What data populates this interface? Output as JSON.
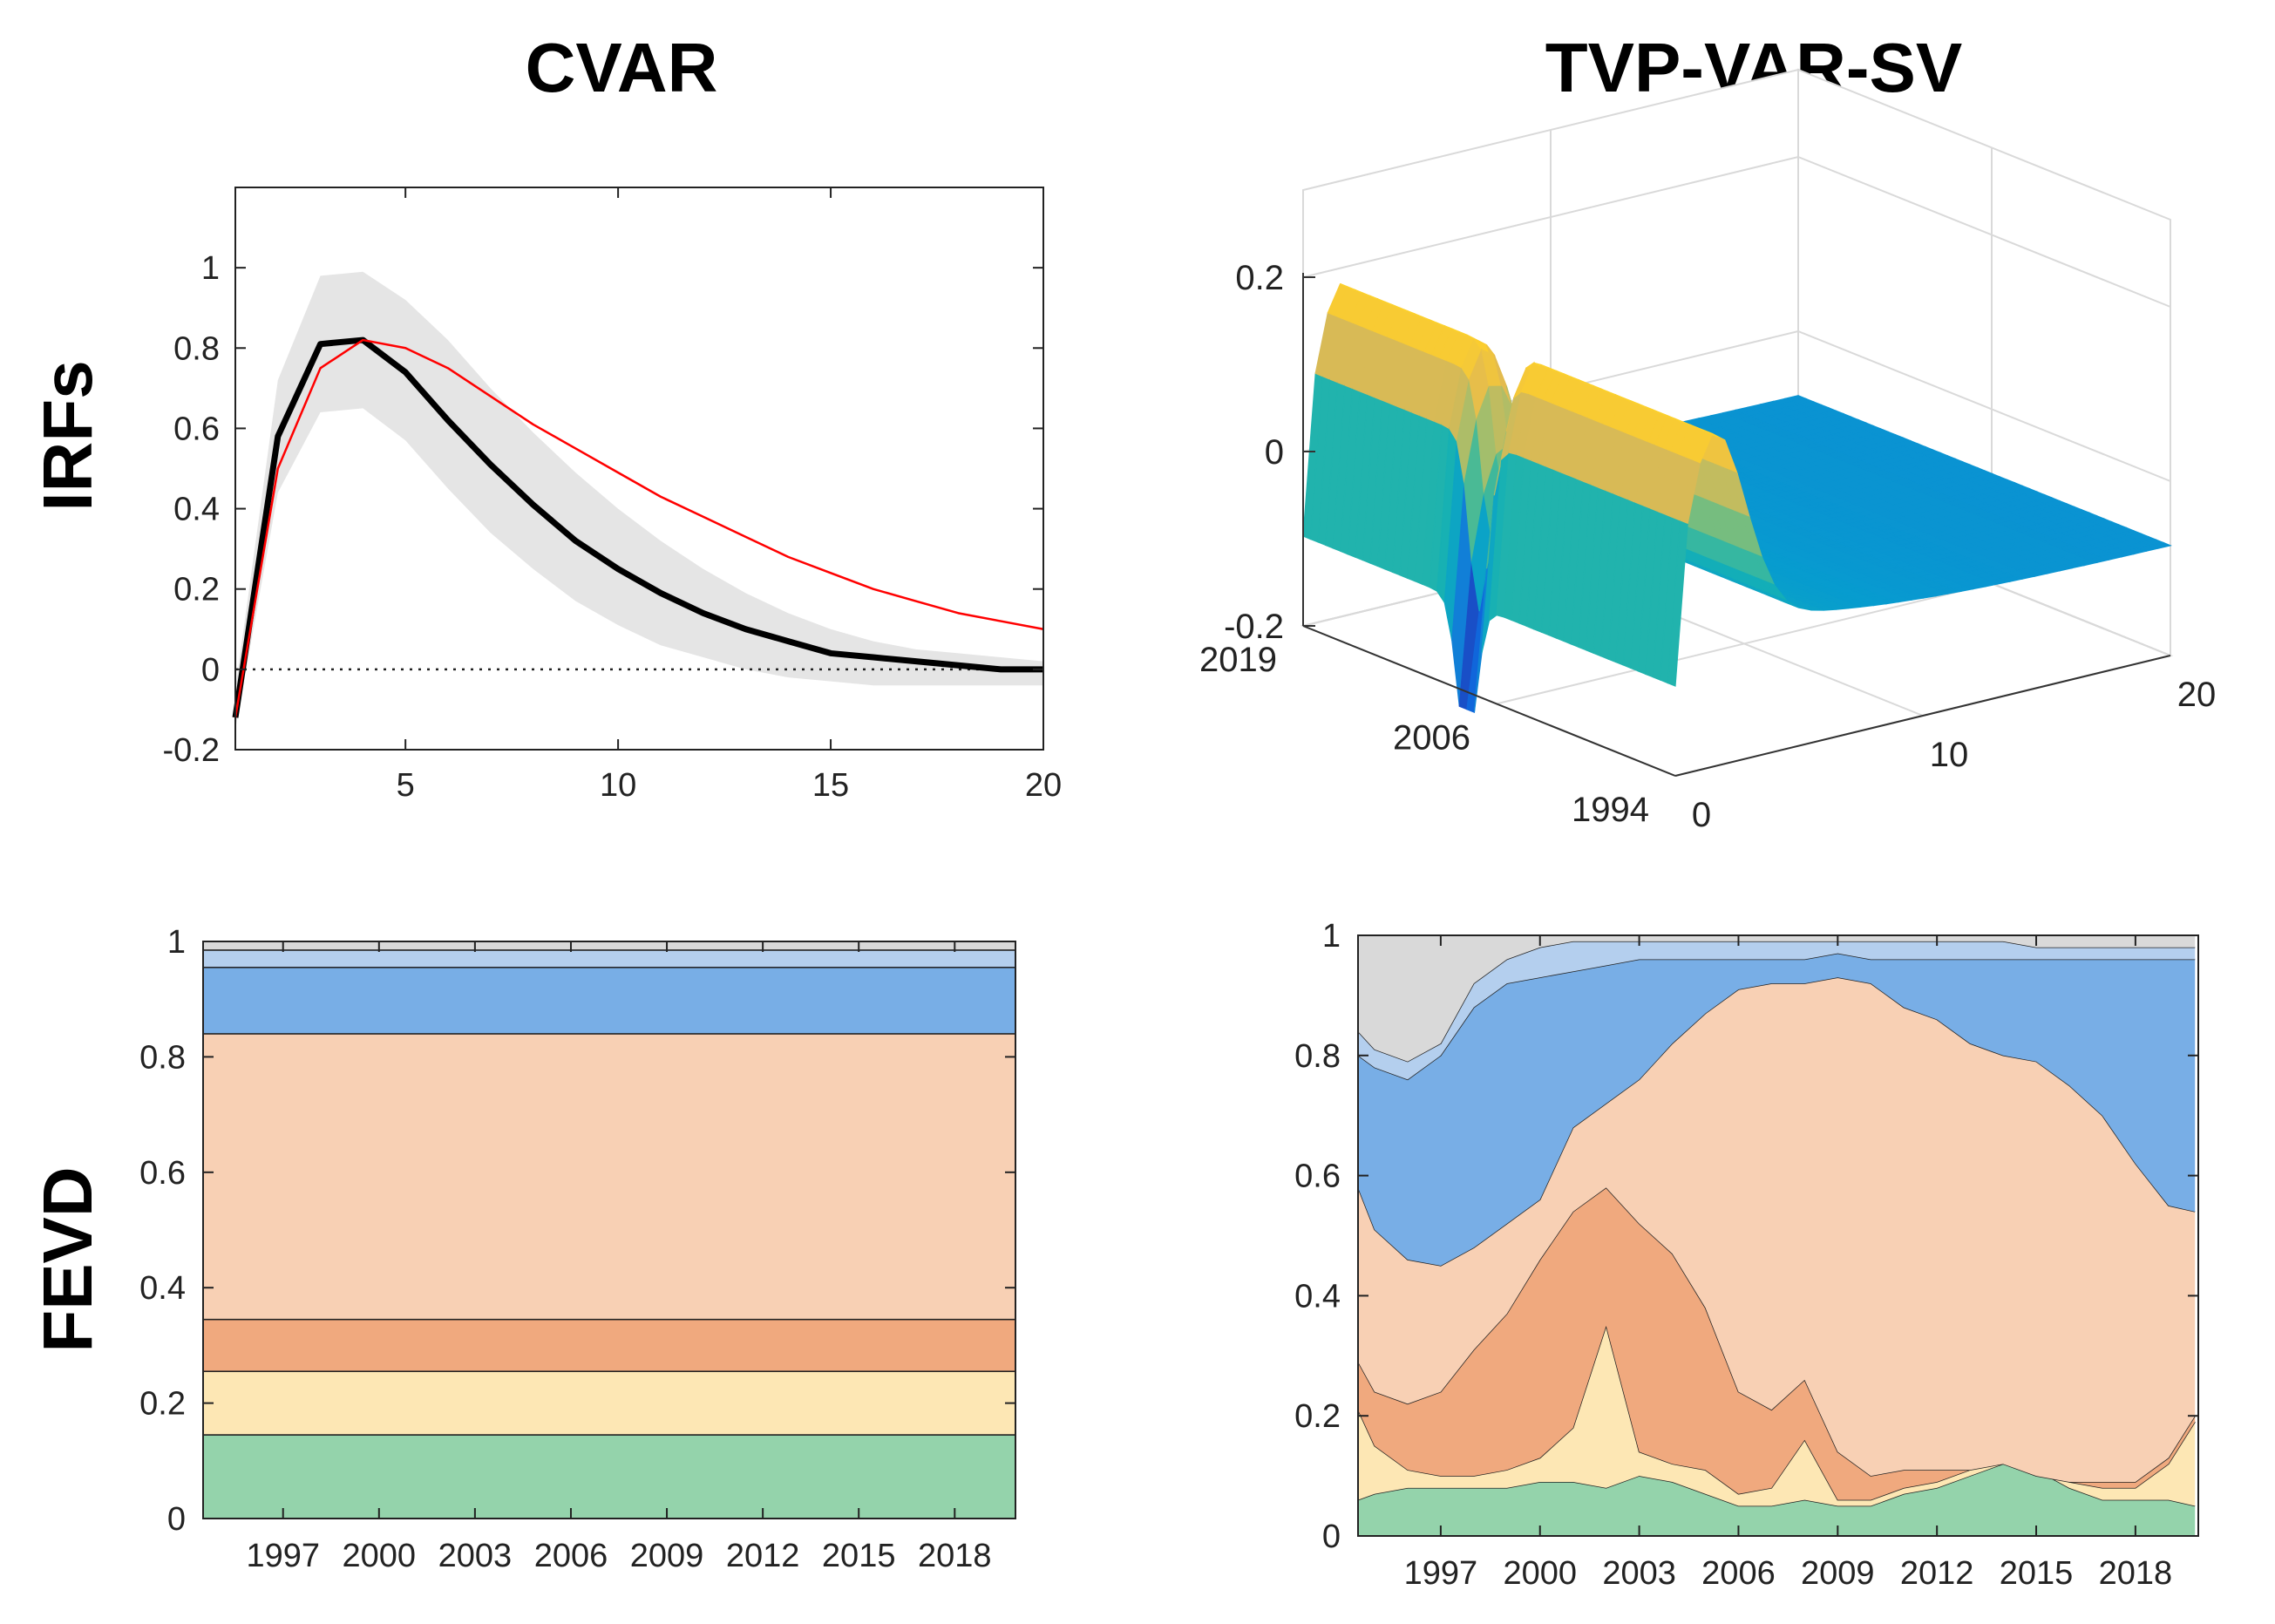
{
  "titles": {
    "left": "CVAR",
    "right": "TVP-VAR-SV"
  },
  "row_labels": {
    "top": "IRFs",
    "bottom": "FEVD"
  },
  "colors": {
    "gray_band": "#e5e5e5",
    "black_line": "#000000",
    "red_line": "#ff0000",
    "fevd_gray": "#d9d9d9",
    "fevd_lightblue": "#b4cfee",
    "fevd_blue": "#78aee6",
    "fevd_peach": "#f8d0b4",
    "fevd_orange": "#f0a97e",
    "fevd_cream": "#fde7b4",
    "fevd_green": "#94d3ab"
  },
  "chart_data": [
    {
      "id": "cvar_irf",
      "type": "line",
      "title": "CVAR",
      "xlim": [
        1,
        20
      ],
      "ylim": [
        -0.2,
        1.2
      ],
      "xticks": [
        5,
        10,
        15,
        20
      ],
      "yticks": [
        -0.2,
        0,
        0.2,
        0.4,
        0.6,
        0.8,
        1
      ],
      "x": [
        1,
        2,
        3,
        4,
        5,
        6,
        7,
        8,
        9,
        10,
        11,
        12,
        13,
        14,
        15,
        16,
        17,
        18,
        19,
        20
      ],
      "band_upper": [
        -0.05,
        0.72,
        0.98,
        0.99,
        0.92,
        0.82,
        0.7,
        0.59,
        0.49,
        0.4,
        0.32,
        0.25,
        0.19,
        0.14,
        0.1,
        0.07,
        0.05,
        0.04,
        0.03,
        0.02
      ],
      "band_lower": [
        -0.15,
        0.44,
        0.64,
        0.65,
        0.57,
        0.45,
        0.34,
        0.25,
        0.17,
        0.11,
        0.06,
        0.03,
        0.0,
        -0.02,
        -0.03,
        -0.04,
        -0.04,
        -0.04,
        -0.04,
        -0.04
      ],
      "series": [
        {
          "color": "#000000",
          "values": [
            -0.12,
            0.58,
            0.81,
            0.82,
            0.74,
            0.62,
            0.51,
            0.41,
            0.32,
            0.25,
            0.19,
            0.14,
            0.1,
            0.07,
            0.04,
            0.03,
            0.02,
            0.01,
            0.0,
            0.0
          ]
        },
        {
          "color": "#ff0000",
          "values": [
            -0.12,
            0.5,
            0.75,
            0.82,
            0.8,
            0.75,
            0.68,
            0.61,
            0.55,
            0.49,
            0.43,
            0.38,
            0.33,
            0.28,
            0.24,
            0.2,
            0.17,
            0.14,
            0.12,
            0.1
          ]
        }
      ],
      "zero_line": 0
    },
    {
      "id": "tvp_irf",
      "type": "surface",
      "title": "TVP-VAR-SV",
      "z_ticks": [
        "-0.2",
        "0",
        "0.2"
      ],
      "year_ticks": [
        "1994",
        "2006",
        "2019"
      ],
      "horizon_ticks": [
        "0",
        "10",
        "20"
      ],
      "year_range": [
        1994,
        2019
      ],
      "horizon_range": [
        0,
        20
      ],
      "zlim": [
        -0.2,
        0.2
      ],
      "colormap": "parula"
    },
    {
      "id": "cvar_fevd",
      "type": "area",
      "x": [
        1995,
        1996,
        1997,
        1998,
        1999,
        2000,
        2001,
        2002,
        2003,
        2004,
        2005,
        2006,
        2007,
        2008,
        2009,
        2010,
        2011,
        2012,
        2013,
        2014,
        2015,
        2016,
        2017,
        2018,
        2019,
        2020
      ],
      "xticks": [
        "1997",
        "2000",
        "2003",
        "2006",
        "2009",
        "2012",
        "2015",
        "2018"
      ],
      "xtick_values": [
        1997,
        2000,
        2003,
        2006,
        2009,
        2012,
        2015,
        2018
      ],
      "xlim": [
        1994.5,
        2019.9
      ],
      "yticks": [
        "0",
        "0.2",
        "0.4",
        "0.6",
        "0.8",
        "1"
      ],
      "ylim": [
        0,
        1
      ],
      "stack": [
        {
          "color": "#94d3ab",
          "value": 0.145
        },
        {
          "color": "#fde7b4",
          "value": 0.11
        },
        {
          "color": "#f0a97e",
          "value": 0.09
        },
        {
          "color": "#f8d0b4",
          "value": 0.495
        },
        {
          "color": "#78aee6",
          "value": 0.115
        },
        {
          "color": "#b4cfee",
          "value": 0.03
        },
        {
          "color": "#d9d9d9",
          "value": 0.015
        }
      ]
    },
    {
      "id": "tvp_fevd",
      "type": "area",
      "x": [
        1994.5,
        1995,
        1996,
        1997,
        1998,
        1999,
        2000,
        2001,
        2002,
        2003,
        2004,
        2005,
        2006,
        2007,
        2008,
        2009,
        2010,
        2011,
        2012,
        2013,
        2014,
        2015,
        2016,
        2017,
        2018,
        2019,
        2019.8
      ],
      "xticks": [
        "1997",
        "2000",
        "2003",
        "2006",
        "2009",
        "2012",
        "2015",
        "2018"
      ],
      "xtick_values": [
        1997,
        2000,
        2003,
        2006,
        2009,
        2012,
        2015,
        2018
      ],
      "xlim": [
        1994.5,
        2019.9
      ],
      "yticks": [
        "0",
        "0.2",
        "0.4",
        "0.6",
        "0.8",
        "1"
      ],
      "ylim": [
        0,
        1
      ],
      "cumulative": [
        {
          "color": "#94d3ab",
          "values": [
            0.06,
            0.07,
            0.08,
            0.08,
            0.08,
            0.08,
            0.09,
            0.09,
            0.08,
            0.1,
            0.09,
            0.07,
            0.05,
            0.05,
            0.06,
            0.05,
            0.05,
            0.07,
            0.08,
            0.1,
            0.12,
            0.11,
            0.08,
            0.06,
            0.06,
            0.06,
            0.05
          ]
        },
        {
          "color": "#fde7b4",
          "values": [
            0.21,
            0.15,
            0.11,
            0.1,
            0.1,
            0.11,
            0.13,
            0.18,
            0.35,
            0.14,
            0.12,
            0.11,
            0.07,
            0.08,
            0.16,
            0.06,
            0.06,
            0.08,
            0.09,
            0.11,
            0.13,
            0.11,
            0.09,
            0.08,
            0.08,
            0.12,
            0.19
          ]
        },
        {
          "color": "#f0a97e",
          "values": [
            0.29,
            0.24,
            0.22,
            0.24,
            0.31,
            0.37,
            0.46,
            0.54,
            0.58,
            0.52,
            0.47,
            0.38,
            0.24,
            0.21,
            0.26,
            0.14,
            0.1,
            0.11,
            0.11,
            0.11,
            0.12,
            0.1,
            0.09,
            0.09,
            0.09,
            0.13,
            0.2
          ]
        },
        {
          "color": "#f8d0b4",
          "values": [
            0.58,
            0.51,
            0.46,
            0.45,
            0.48,
            0.52,
            0.56,
            0.68,
            0.72,
            0.76,
            0.82,
            0.87,
            0.91,
            0.92,
            0.92,
            0.93,
            0.92,
            0.88,
            0.86,
            0.82,
            0.8,
            0.79,
            0.75,
            0.7,
            0.62,
            0.55,
            0.54
          ]
        },
        {
          "color": "#78aee6",
          "values": [
            0.8,
            0.78,
            0.76,
            0.8,
            0.88,
            0.92,
            0.93,
            0.94,
            0.95,
            0.96,
            0.96,
            0.96,
            0.96,
            0.96,
            0.96,
            0.97,
            0.96,
            0.96,
            0.96,
            0.96,
            0.96,
            0.96,
            0.96,
            0.96,
            0.96,
            0.96,
            0.96
          ]
        },
        {
          "color": "#b4cfee",
          "values": [
            0.84,
            0.81,
            0.79,
            0.82,
            0.92,
            0.96,
            0.98,
            0.99,
            0.99,
            0.99,
            0.99,
            0.99,
            0.99,
            0.99,
            0.99,
            0.99,
            0.99,
            0.99,
            0.99,
            0.99,
            0.99,
            0.98,
            0.98,
            0.98,
            0.98,
            0.98,
            0.98
          ]
        },
        {
          "color": "#d9d9d9",
          "values": [
            1,
            1,
            1,
            1,
            1,
            1,
            1,
            1,
            1,
            1,
            1,
            1,
            1,
            1,
            1,
            1,
            1,
            1,
            1,
            1,
            1,
            1,
            1,
            1,
            1,
            1,
            1
          ]
        }
      ]
    }
  ]
}
